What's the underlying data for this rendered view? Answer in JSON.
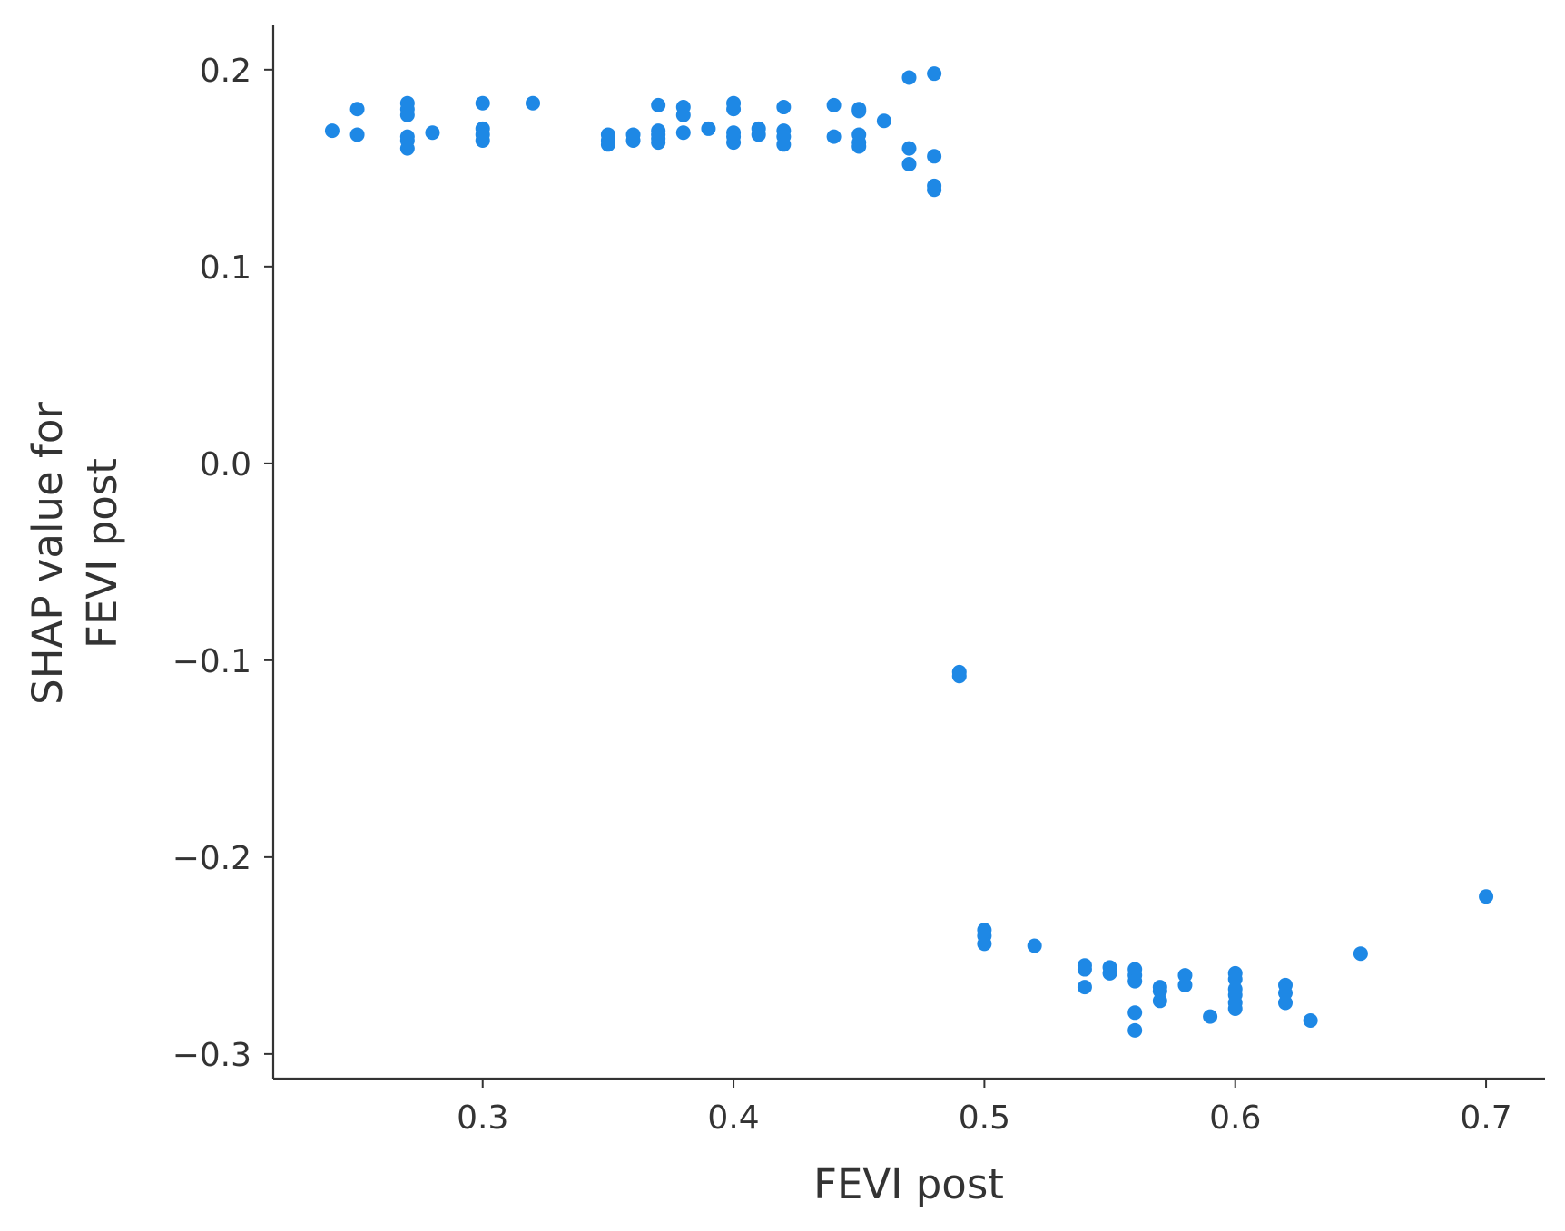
{
  "chart_data": {
    "type": "scatter",
    "title": "",
    "xlabel": "FEVI post",
    "ylabel_lines": [
      "SHAP value for",
      "FEVI post"
    ],
    "xlim": [
      0.2165,
      0.7235
    ],
    "ylim": [
      -0.3125,
      0.2225
    ],
    "xticks": [
      0.3,
      0.4,
      0.5,
      0.6,
      0.7
    ],
    "xtick_labels": [
      "0.3",
      "0.4",
      "0.5",
      "0.6",
      "0.7"
    ],
    "yticks": [
      0.2,
      0.1,
      0.0,
      -0.1,
      -0.2,
      -0.3
    ],
    "ytick_labels": [
      "0.2",
      "0.1",
      "0.0",
      "−0.1",
      "−0.2",
      "−0.3"
    ],
    "grid": false,
    "legend": "none",
    "marker_color": "#1e88e5",
    "axis_color": "#333333",
    "series": [
      {
        "points": [
          [
            0.24,
            0.169
          ],
          [
            0.25,
            0.18
          ],
          [
            0.25,
            0.167
          ],
          [
            0.27,
            0.183
          ],
          [
            0.27,
            0.18
          ],
          [
            0.27,
            0.177
          ],
          [
            0.27,
            0.166
          ],
          [
            0.27,
            0.164
          ],
          [
            0.27,
            0.16
          ],
          [
            0.28,
            0.168
          ],
          [
            0.3,
            0.183
          ],
          [
            0.3,
            0.17
          ],
          [
            0.3,
            0.167
          ],
          [
            0.3,
            0.164
          ],
          [
            0.32,
            0.183
          ],
          [
            0.35,
            0.167
          ],
          [
            0.35,
            0.164
          ],
          [
            0.35,
            0.162
          ],
          [
            0.36,
            0.167
          ],
          [
            0.36,
            0.164
          ],
          [
            0.37,
            0.182
          ],
          [
            0.37,
            0.169
          ],
          [
            0.37,
            0.167
          ],
          [
            0.37,
            0.165
          ],
          [
            0.37,
            0.163
          ],
          [
            0.38,
            0.181
          ],
          [
            0.38,
            0.177
          ],
          [
            0.38,
            0.168
          ],
          [
            0.39,
            0.17
          ],
          [
            0.4,
            0.183
          ],
          [
            0.4,
            0.18
          ],
          [
            0.4,
            0.168
          ],
          [
            0.4,
            0.166
          ],
          [
            0.4,
            0.163
          ],
          [
            0.41,
            0.17
          ],
          [
            0.41,
            0.167
          ],
          [
            0.42,
            0.181
          ],
          [
            0.42,
            0.169
          ],
          [
            0.42,
            0.166
          ],
          [
            0.42,
            0.162
          ],
          [
            0.44,
            0.182
          ],
          [
            0.44,
            0.166
          ],
          [
            0.45,
            0.18
          ],
          [
            0.45,
            0.179
          ],
          [
            0.45,
            0.167
          ],
          [
            0.45,
            0.163
          ],
          [
            0.45,
            0.161
          ],
          [
            0.46,
            0.174
          ],
          [
            0.47,
            0.196
          ],
          [
            0.47,
            0.16
          ],
          [
            0.47,
            0.152
          ],
          [
            0.48,
            0.198
          ],
          [
            0.48,
            0.156
          ],
          [
            0.48,
            0.141
          ],
          [
            0.48,
            0.139
          ],
          [
            0.49,
            -0.106
          ],
          [
            0.49,
            -0.108
          ],
          [
            0.5,
            -0.237
          ],
          [
            0.5,
            -0.24
          ],
          [
            0.5,
            -0.244
          ],
          [
            0.52,
            -0.245
          ],
          [
            0.54,
            -0.255
          ],
          [
            0.54,
            -0.257
          ],
          [
            0.54,
            -0.266
          ],
          [
            0.55,
            -0.256
          ],
          [
            0.55,
            -0.259
          ],
          [
            0.56,
            -0.257
          ],
          [
            0.56,
            -0.26
          ],
          [
            0.56,
            -0.263
          ],
          [
            0.56,
            -0.279
          ],
          [
            0.56,
            -0.288
          ],
          [
            0.57,
            -0.266
          ],
          [
            0.57,
            -0.268
          ],
          [
            0.57,
            -0.273
          ],
          [
            0.58,
            -0.26
          ],
          [
            0.58,
            -0.265
          ],
          [
            0.59,
            -0.281
          ],
          [
            0.6,
            -0.259
          ],
          [
            0.6,
            -0.262
          ],
          [
            0.6,
            -0.267
          ],
          [
            0.6,
            -0.27
          ],
          [
            0.6,
            -0.274
          ],
          [
            0.6,
            -0.277
          ],
          [
            0.62,
            -0.265
          ],
          [
            0.62,
            -0.269
          ],
          [
            0.62,
            -0.274
          ],
          [
            0.63,
            -0.283
          ],
          [
            0.65,
            -0.249
          ],
          [
            0.7,
            -0.22
          ]
        ]
      }
    ]
  }
}
